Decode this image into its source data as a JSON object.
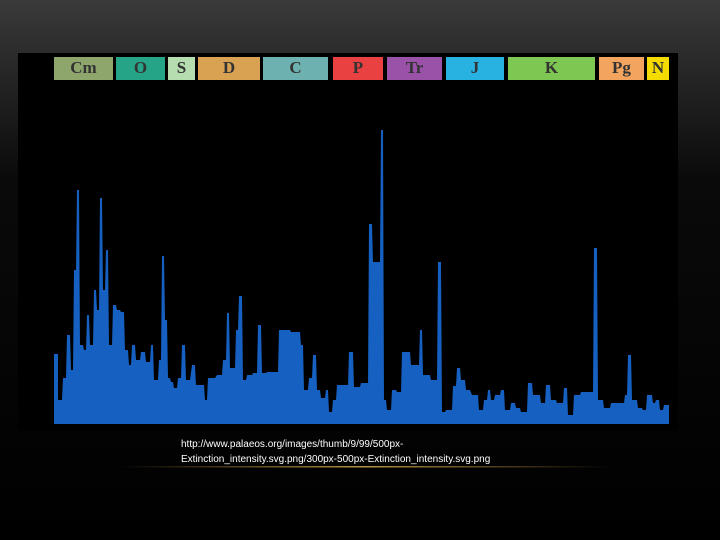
{
  "slide": {
    "periods": [
      {
        "label": "Cm",
        "color": "#8ea66c"
      },
      {
        "label": "O",
        "color": "#25a488"
      },
      {
        "label": "S",
        "color": "#b6ddb0"
      },
      {
        "label": "D",
        "color": "#d9a152"
      },
      {
        "label": "C",
        "color": "#6db2b0"
      },
      {
        "label": "P",
        "color": "#e94141"
      },
      {
        "label": "Tr",
        "color": "#9a52a8"
      },
      {
        "label": "J",
        "color": "#27b2e2"
      },
      {
        "label": "K",
        "color": "#7dc752"
      },
      {
        "label": "Pg",
        "color": "#f3a45f"
      },
      {
        "label": "N",
        "color": "#f4dc00"
      }
    ],
    "caption_lines": [
      "http://www.palaeos.org/images/thumb/9/99/500px-",
      "Extinction_intensity.svg.png/300px-500px-Extinction_intensity.svg.png"
    ]
  }
}
